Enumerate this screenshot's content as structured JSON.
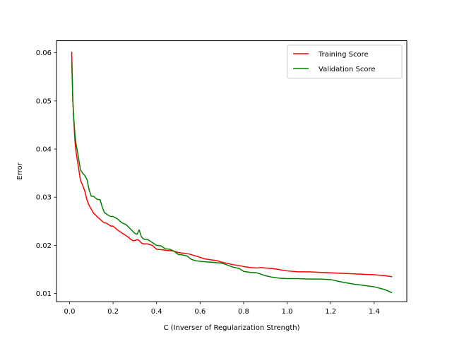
{
  "chart_data": {
    "type": "line",
    "title": "",
    "xlabel": "C (Inverser of Regularization Strength)",
    "ylabel": "Error",
    "xlim": [
      -0.06,
      1.55
    ],
    "ylim": [
      0.0083,
      0.0625
    ],
    "xticks": [
      0.0,
      0.2,
      0.4,
      0.6,
      0.8,
      1.0,
      1.2,
      1.4
    ],
    "xtick_labels": [
      "0.0",
      "0.2",
      "0.4",
      "0.6",
      "0.8",
      "1.0",
      "1.2",
      "1.4"
    ],
    "yticks": [
      0.01,
      0.02,
      0.03,
      0.04,
      0.05,
      0.06
    ],
    "ytick_labels": [
      "0.01",
      "0.02",
      "0.03",
      "0.04",
      "0.05",
      "0.06"
    ],
    "grid": false,
    "legend_position": "top-right",
    "series": [
      {
        "name": "Training Score",
        "color": "#ff0000",
        "x": [
          0.01,
          0.012,
          0.015,
          0.02,
          0.025,
          0.03,
          0.04,
          0.05,
          0.06,
          0.07,
          0.08,
          0.09,
          0.1,
          0.11,
          0.12,
          0.13,
          0.14,
          0.15,
          0.16,
          0.17,
          0.18,
          0.19,
          0.2,
          0.21,
          0.22,
          0.23,
          0.24,
          0.25,
          0.26,
          0.27,
          0.28,
          0.29,
          0.3,
          0.31,
          0.32,
          0.33,
          0.34,
          0.36,
          0.38,
          0.4,
          0.42,
          0.44,
          0.46,
          0.48,
          0.5,
          0.52,
          0.55,
          0.58,
          0.6,
          0.62,
          0.65,
          0.68,
          0.7,
          0.72,
          0.75,
          0.78,
          0.8,
          0.83,
          0.86,
          0.88,
          0.9,
          0.93,
          0.96,
          1.0,
          1.05,
          1.1,
          1.15,
          1.2,
          1.25,
          1.3,
          1.35,
          1.4,
          1.45,
          1.48
        ],
        "y": [
          0.0601,
          0.056,
          0.05,
          0.0455,
          0.0415,
          0.0393,
          0.0365,
          0.0335,
          0.0325,
          0.0313,
          0.0294,
          0.0283,
          0.0275,
          0.0267,
          0.0263,
          0.0258,
          0.0254,
          0.025,
          0.0247,
          0.0246,
          0.0243,
          0.024,
          0.024,
          0.0236,
          0.0232,
          0.0229,
          0.0226,
          0.0223,
          0.022,
          0.0217,
          0.0213,
          0.021,
          0.021,
          0.0212,
          0.021,
          0.0205,
          0.0203,
          0.0203,
          0.02,
          0.0192,
          0.0191,
          0.019,
          0.0189,
          0.0188,
          0.0185,
          0.0184,
          0.0182,
          0.0178,
          0.0175,
          0.0172,
          0.017,
          0.0168,
          0.0165,
          0.0163,
          0.016,
          0.0158,
          0.0156,
          0.0154,
          0.0153,
          0.0154,
          0.0153,
          0.0152,
          0.015,
          0.0147,
          0.0145,
          0.0145,
          0.0144,
          0.0143,
          0.0142,
          0.0141,
          0.014,
          0.0139,
          0.0137,
          0.0135
        ]
      },
      {
        "name": "Validation Score",
        "color": "#008000",
        "x": [
          0.01,
          0.012,
          0.015,
          0.02,
          0.025,
          0.03,
          0.04,
          0.05,
          0.06,
          0.07,
          0.08,
          0.09,
          0.1,
          0.11,
          0.12,
          0.13,
          0.14,
          0.15,
          0.16,
          0.17,
          0.18,
          0.19,
          0.2,
          0.22,
          0.24,
          0.26,
          0.28,
          0.3,
          0.31,
          0.32,
          0.33,
          0.34,
          0.36,
          0.38,
          0.4,
          0.42,
          0.44,
          0.46,
          0.48,
          0.5,
          0.52,
          0.54,
          0.56,
          0.58,
          0.6,
          0.62,
          0.65,
          0.68,
          0.7,
          0.72,
          0.75,
          0.78,
          0.8,
          0.83,
          0.86,
          0.88,
          0.9,
          0.93,
          0.96,
          1.0,
          1.05,
          1.1,
          1.15,
          1.2,
          1.25,
          1.3,
          1.35,
          1.4,
          1.45,
          1.48
        ],
        "y": [
          0.058,
          0.055,
          0.05,
          0.046,
          0.043,
          0.041,
          0.0385,
          0.0357,
          0.035,
          0.0345,
          0.0337,
          0.0315,
          0.0302,
          0.0302,
          0.0298,
          0.0295,
          0.0295,
          0.028,
          0.0268,
          0.0265,
          0.0262,
          0.026,
          0.026,
          0.0255,
          0.0247,
          0.0243,
          0.0234,
          0.0225,
          0.0223,
          0.0232,
          0.0218,
          0.0213,
          0.0212,
          0.0206,
          0.02,
          0.0199,
          0.0193,
          0.0192,
          0.0188,
          0.0181,
          0.018,
          0.0178,
          0.0171,
          0.0168,
          0.0167,
          0.0166,
          0.0165,
          0.0164,
          0.0163,
          0.016,
          0.0155,
          0.0152,
          0.0146,
          0.0144,
          0.0143,
          0.014,
          0.0137,
          0.0134,
          0.0132,
          0.0131,
          0.0131,
          0.013,
          0.013,
          0.0129,
          0.0124,
          0.012,
          0.0117,
          0.0114,
          0.0108,
          0.0102
        ]
      }
    ]
  }
}
